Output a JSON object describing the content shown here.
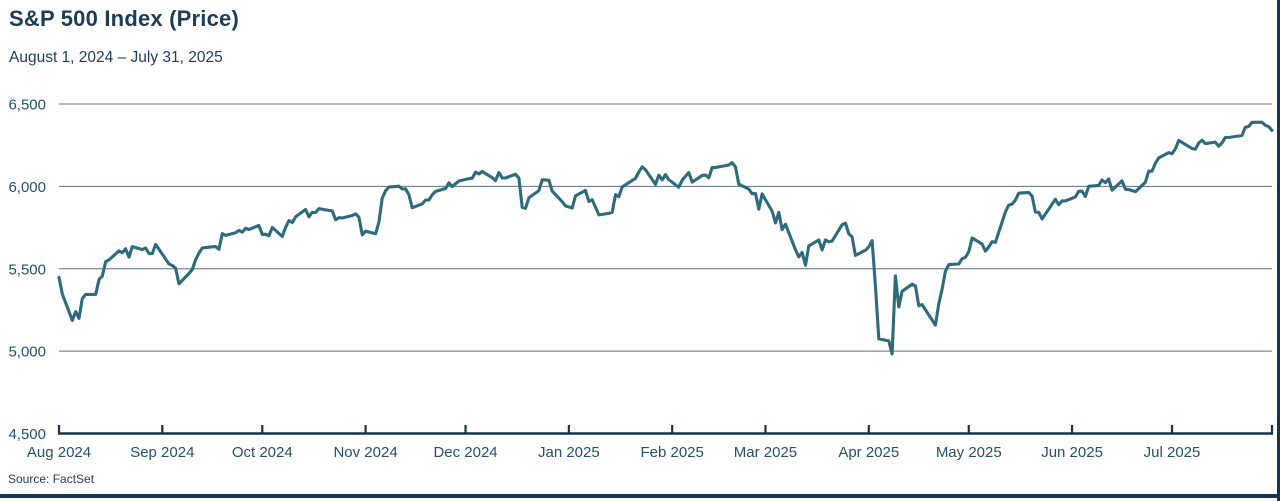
{
  "header": {
    "title": "S&P 500 Index (Price)",
    "subtitle": "August 1, 2024 – July 31, 2025"
  },
  "footer": {
    "source": "Source: FactSet"
  },
  "colors": {
    "line": "#2e6b7d",
    "gridline": "#5b7184",
    "axis": "#16344f",
    "text": "#1d3c59",
    "tick_text": "#26506b"
  },
  "chart_data": {
    "type": "line",
    "title": "S&P 500 Index (Price)",
    "subtitle": "August 1, 2024 – July 31, 2025",
    "xlabel": "",
    "ylabel": "",
    "ylim": [
      4500,
      6500
    ],
    "grid": "on",
    "legend": "none",
    "x_range": [
      "2024-08-01",
      "2025-07-31"
    ],
    "y_axis": {
      "ticks": [
        {
          "label": "6,500",
          "value": 6500
        },
        {
          "label": "6,000",
          "value": 6000
        },
        {
          "label": "5,500",
          "value": 5500
        },
        {
          "label": "5,000",
          "value": 5000
        },
        {
          "label": "4,500",
          "value": 4500
        }
      ]
    },
    "x_axis": {
      "ticks": [
        {
          "label": "Aug 2024",
          "date": "2024-08-01"
        },
        {
          "label": "Sep 2024",
          "date": "2024-09-01"
        },
        {
          "label": "Oct 2024",
          "date": "2024-10-01"
        },
        {
          "label": "Nov 2024",
          "date": "2024-11-01"
        },
        {
          "label": "Dec 2024",
          "date": "2024-12-01"
        },
        {
          "label": "Jan 2025",
          "date": "2025-01-01"
        },
        {
          "label": "Feb 2025",
          "date": "2025-02-01"
        },
        {
          "label": "Mar 2025",
          "date": "2025-03-01"
        },
        {
          "label": "Apr 2025",
          "date": "2025-04-01"
        },
        {
          "label": "May 2025",
          "date": "2025-05-01"
        },
        {
          "label": "Jun 2025",
          "date": "2025-06-01"
        },
        {
          "label": "Jul 2025",
          "date": "2025-07-01"
        }
      ]
    },
    "series": [
      {
        "name": "S&P 500 Index (Price)",
        "points": [
          [
            "2024-08-01",
            5446.68
          ],
          [
            "2024-08-02",
            5346.56
          ],
          [
            "2024-08-05",
            5186.33
          ],
          [
            "2024-08-06",
            5240.03
          ],
          [
            "2024-08-07",
            5199.5
          ],
          [
            "2024-08-08",
            5319.31
          ],
          [
            "2024-08-09",
            5344.16
          ],
          [
            "2024-08-12",
            5344.39
          ],
          [
            "2024-08-13",
            5434.43
          ],
          [
            "2024-08-14",
            5455.21
          ],
          [
            "2024-08-15",
            5543.22
          ],
          [
            "2024-08-16",
            5554.25
          ],
          [
            "2024-08-19",
            5608.25
          ],
          [
            "2024-08-20",
            5597.12
          ],
          [
            "2024-08-21",
            5620.85
          ],
          [
            "2024-08-22",
            5570.64
          ],
          [
            "2024-08-23",
            5634.61
          ],
          [
            "2024-08-26",
            5616.84
          ],
          [
            "2024-08-27",
            5625.8
          ],
          [
            "2024-08-28",
            5592.18
          ],
          [
            "2024-08-29",
            5591.96
          ],
          [
            "2024-08-30",
            5648.4
          ],
          [
            "2024-09-03",
            5528.93
          ],
          [
            "2024-09-04",
            5520.07
          ],
          [
            "2024-09-05",
            5503.41
          ],
          [
            "2024-09-06",
            5408.42
          ],
          [
            "2024-09-09",
            5471.05
          ],
          [
            "2024-09-10",
            5495.52
          ],
          [
            "2024-09-11",
            5554.13
          ],
          [
            "2024-09-12",
            5595.76
          ],
          [
            "2024-09-13",
            5626.02
          ],
          [
            "2024-09-16",
            5633.09
          ],
          [
            "2024-09-17",
            5634.58
          ],
          [
            "2024-09-18",
            5618.26
          ],
          [
            "2024-09-19",
            5713.64
          ],
          [
            "2024-09-20",
            5702.55
          ],
          [
            "2024-09-23",
            5718.57
          ],
          [
            "2024-09-24",
            5732.93
          ],
          [
            "2024-09-25",
            5722.26
          ],
          [
            "2024-09-26",
            5745.37
          ],
          [
            "2024-09-27",
            5738.17
          ],
          [
            "2024-09-30",
            5762.48
          ],
          [
            "2024-10-01",
            5708.75
          ],
          [
            "2024-10-02",
            5709.54
          ],
          [
            "2024-10-03",
            5699.94
          ],
          [
            "2024-10-04",
            5751.07
          ],
          [
            "2024-10-07",
            5695.94
          ],
          [
            "2024-10-08",
            5751.13
          ],
          [
            "2024-10-09",
            5792.04
          ],
          [
            "2024-10-10",
            5780.05
          ],
          [
            "2024-10-11",
            5815.03
          ],
          [
            "2024-10-14",
            5859.85
          ],
          [
            "2024-10-15",
            5815.26
          ],
          [
            "2024-10-16",
            5842.47
          ],
          [
            "2024-10-17",
            5841.47
          ],
          [
            "2024-10-18",
            5864.67
          ],
          [
            "2024-10-21",
            5853.98
          ],
          [
            "2024-10-22",
            5851.2
          ],
          [
            "2024-10-23",
            5797.42
          ],
          [
            "2024-10-24",
            5809.86
          ],
          [
            "2024-10-25",
            5808.12
          ],
          [
            "2024-10-28",
            5823.52
          ],
          [
            "2024-10-29",
            5832.92
          ],
          [
            "2024-10-30",
            5813.67
          ],
          [
            "2024-10-31",
            5705.45
          ],
          [
            "2024-11-01",
            5728.8
          ],
          [
            "2024-11-04",
            5712.69
          ],
          [
            "2024-11-05",
            5782.76
          ],
          [
            "2024-11-06",
            5929.04
          ],
          [
            "2024-11-07",
            5973.1
          ],
          [
            "2024-11-08",
            5995.54
          ],
          [
            "2024-11-11",
            6001.35
          ],
          [
            "2024-11-12",
            5983.99
          ],
          [
            "2024-11-13",
            5985.38
          ],
          [
            "2024-11-14",
            5949.17
          ],
          [
            "2024-11-15",
            5870.62
          ],
          [
            "2024-11-18",
            5893.62
          ],
          [
            "2024-11-19",
            5916.98
          ],
          [
            "2024-11-20",
            5917.11
          ],
          [
            "2024-11-21",
            5948.71
          ],
          [
            "2024-11-22",
            5969.34
          ],
          [
            "2024-11-25",
            5987.37
          ],
          [
            "2024-11-26",
            6021.63
          ],
          [
            "2024-11-27",
            5998.74
          ],
          [
            "2024-11-29",
            6032.38
          ],
          [
            "2024-12-02",
            6047.15
          ],
          [
            "2024-12-03",
            6049.88
          ],
          [
            "2024-12-04",
            6086.49
          ],
          [
            "2024-12-05",
            6075.11
          ],
          [
            "2024-12-06",
            6090.27
          ],
          [
            "2024-12-09",
            6052.85
          ],
          [
            "2024-12-10",
            6034.91
          ],
          [
            "2024-12-11",
            6084.19
          ],
          [
            "2024-12-12",
            6051.25
          ],
          [
            "2024-12-13",
            6051.09
          ],
          [
            "2024-12-16",
            6074.08
          ],
          [
            "2024-12-17",
            6050.61
          ],
          [
            "2024-12-18",
            5872.16
          ],
          [
            "2024-12-19",
            5867.08
          ],
          [
            "2024-12-20",
            5930.85
          ],
          [
            "2024-12-23",
            5974.07
          ],
          [
            "2024-12-24",
            6040.04
          ],
          [
            "2024-12-26",
            6037.59
          ],
          [
            "2024-12-27",
            5970.84
          ],
          [
            "2024-12-30",
            5906.94
          ],
          [
            "2024-12-31",
            5881.63
          ],
          [
            "2025-01-02",
            5868.55
          ],
          [
            "2025-01-03",
            5942.47
          ],
          [
            "2025-01-06",
            5975.38
          ],
          [
            "2025-01-07",
            5909.03
          ],
          [
            "2025-01-08",
            5918.25
          ],
          [
            "2025-01-10",
            5827.04
          ],
          [
            "2025-01-13",
            5836.22
          ],
          [
            "2025-01-14",
            5842.91
          ],
          [
            "2025-01-15",
            5949.91
          ],
          [
            "2025-01-16",
            5937.34
          ],
          [
            "2025-01-17",
            5996.66
          ],
          [
            "2025-01-21",
            6049.24
          ],
          [
            "2025-01-22",
            6086.37
          ],
          [
            "2025-01-23",
            6118.71
          ],
          [
            "2025-01-24",
            6101.24
          ],
          [
            "2025-01-27",
            6012.28
          ],
          [
            "2025-01-28",
            6067.7
          ],
          [
            "2025-01-29",
            6039.31
          ],
          [
            "2025-01-30",
            6071.17
          ],
          [
            "2025-01-31",
            6040.53
          ],
          [
            "2025-02-03",
            5994.57
          ],
          [
            "2025-02-04",
            6037.88
          ],
          [
            "2025-02-05",
            6061.48
          ],
          [
            "2025-02-06",
            6083.57
          ],
          [
            "2025-02-07",
            6025.99
          ],
          [
            "2025-02-10",
            6066.44
          ],
          [
            "2025-02-11",
            6068.5
          ],
          [
            "2025-02-12",
            6051.97
          ],
          [
            "2025-02-13",
            6115.07
          ],
          [
            "2025-02-14",
            6114.63
          ],
          [
            "2025-02-18",
            6129.58
          ],
          [
            "2025-02-19",
            6144.15
          ],
          [
            "2025-02-20",
            6117.52
          ],
          [
            "2025-02-21",
            6013.13
          ],
          [
            "2025-02-24",
            5983.25
          ],
          [
            "2025-02-25",
            5955.25
          ],
          [
            "2025-02-26",
            5956.06
          ],
          [
            "2025-02-27",
            5861.57
          ],
          [
            "2025-02-28",
            5954.5
          ],
          [
            "2025-03-03",
            5849.72
          ],
          [
            "2025-03-04",
            5778.15
          ],
          [
            "2025-03-05",
            5842.63
          ],
          [
            "2025-03-06",
            5738.52
          ],
          [
            "2025-03-07",
            5770.2
          ],
          [
            "2025-03-10",
            5614.56
          ],
          [
            "2025-03-11",
            5572.07
          ],
          [
            "2025-03-12",
            5599.3
          ],
          [
            "2025-03-13",
            5521.52
          ],
          [
            "2025-03-14",
            5638.94
          ],
          [
            "2025-03-17",
            5675.12
          ],
          [
            "2025-03-18",
            5614.66
          ],
          [
            "2025-03-19",
            5675.29
          ],
          [
            "2025-03-20",
            5662.89
          ],
          [
            "2025-03-21",
            5667.56
          ],
          [
            "2025-03-24",
            5767.57
          ],
          [
            "2025-03-25",
            5776.65
          ],
          [
            "2025-03-26",
            5712.2
          ],
          [
            "2025-03-27",
            5693.31
          ],
          [
            "2025-03-28",
            5580.94
          ],
          [
            "2025-03-31",
            5611.85
          ],
          [
            "2025-04-01",
            5633.07
          ],
          [
            "2025-04-02",
            5670.97
          ],
          [
            "2025-04-03",
            5396.52
          ],
          [
            "2025-04-04",
            5074.08
          ],
          [
            "2025-04-07",
            5062.25
          ],
          [
            "2025-04-08",
            4982.77
          ],
          [
            "2025-04-09",
            5456.9
          ],
          [
            "2025-04-10",
            5268.05
          ],
          [
            "2025-04-11",
            5363.36
          ],
          [
            "2025-04-14",
            5405.97
          ],
          [
            "2025-04-15",
            5396.63
          ],
          [
            "2025-04-16",
            5275.7
          ],
          [
            "2025-04-17",
            5282.7
          ],
          [
            "2025-04-21",
            5158.2
          ],
          [
            "2025-04-22",
            5287.76
          ],
          [
            "2025-04-23",
            5375.86
          ],
          [
            "2025-04-24",
            5484.77
          ],
          [
            "2025-04-25",
            5525.21
          ],
          [
            "2025-04-28",
            5528.75
          ],
          [
            "2025-04-29",
            5560.83
          ],
          [
            "2025-04-30",
            5569.06
          ],
          [
            "2025-05-01",
            5604.14
          ],
          [
            "2025-05-02",
            5686.67
          ],
          [
            "2025-05-05",
            5650.38
          ],
          [
            "2025-05-06",
            5606.91
          ],
          [
            "2025-05-07",
            5631.28
          ],
          [
            "2025-05-08",
            5663.94
          ],
          [
            "2025-05-09",
            5659.91
          ],
          [
            "2025-05-12",
            5844.19
          ],
          [
            "2025-05-13",
            5886.55
          ],
          [
            "2025-05-14",
            5892.58
          ],
          [
            "2025-05-15",
            5916.93
          ],
          [
            "2025-05-16",
            5958.38
          ],
          [
            "2025-05-19",
            5963.6
          ],
          [
            "2025-05-20",
            5940.46
          ],
          [
            "2025-05-21",
            5844.61
          ],
          [
            "2025-05-22",
            5842.01
          ],
          [
            "2025-05-23",
            5802.82
          ],
          [
            "2025-05-27",
            5921.54
          ],
          [
            "2025-05-28",
            5888.55
          ],
          [
            "2025-05-29",
            5912.17
          ],
          [
            "2025-05-30",
            5911.69
          ],
          [
            "2025-06-02",
            5935.94
          ],
          [
            "2025-06-03",
            5970.37
          ],
          [
            "2025-06-04",
            5970.81
          ],
          [
            "2025-06-05",
            5939.3
          ],
          [
            "2025-06-06",
            6000.36
          ],
          [
            "2025-06-09",
            6005.88
          ],
          [
            "2025-06-10",
            6038.81
          ],
          [
            "2025-06-11",
            6022.24
          ],
          [
            "2025-06-12",
            6045.26
          ],
          [
            "2025-06-13",
            5976.97
          ],
          [
            "2025-06-16",
            6033.11
          ],
          [
            "2025-06-17",
            5982.72
          ],
          [
            "2025-06-18",
            5980.87
          ],
          [
            "2025-06-20",
            5967.84
          ],
          [
            "2025-06-23",
            6025.17
          ],
          [
            "2025-06-24",
            6092.18
          ],
          [
            "2025-06-25",
            6092.16
          ],
          [
            "2025-06-26",
            6141.02
          ],
          [
            "2025-06-27",
            6173.07
          ],
          [
            "2025-06-30",
            6204.95
          ],
          [
            "2025-07-01",
            6198.01
          ],
          [
            "2025-07-02",
            6227.42
          ],
          [
            "2025-07-03",
            6279.35
          ],
          [
            "2025-07-07",
            6229.98
          ],
          [
            "2025-07-08",
            6225.52
          ],
          [
            "2025-07-09",
            6263.26
          ],
          [
            "2025-07-10",
            6280.46
          ],
          [
            "2025-07-11",
            6259.75
          ],
          [
            "2025-07-14",
            6268.56
          ],
          [
            "2025-07-15",
            6243.76
          ],
          [
            "2025-07-16",
            6263.7
          ],
          [
            "2025-07-17",
            6297.36
          ],
          [
            "2025-07-18",
            6296.79
          ],
          [
            "2025-07-21",
            6305.6
          ],
          [
            "2025-07-22",
            6309.62
          ],
          [
            "2025-07-23",
            6358.91
          ],
          [
            "2025-07-24",
            6363.35
          ],
          [
            "2025-07-25",
            6388.64
          ],
          [
            "2025-07-28",
            6389.77
          ],
          [
            "2025-07-29",
            6370.86
          ],
          [
            "2025-07-30",
            6362.9
          ],
          [
            "2025-07-31",
            6339.39
          ]
        ]
      }
    ]
  }
}
